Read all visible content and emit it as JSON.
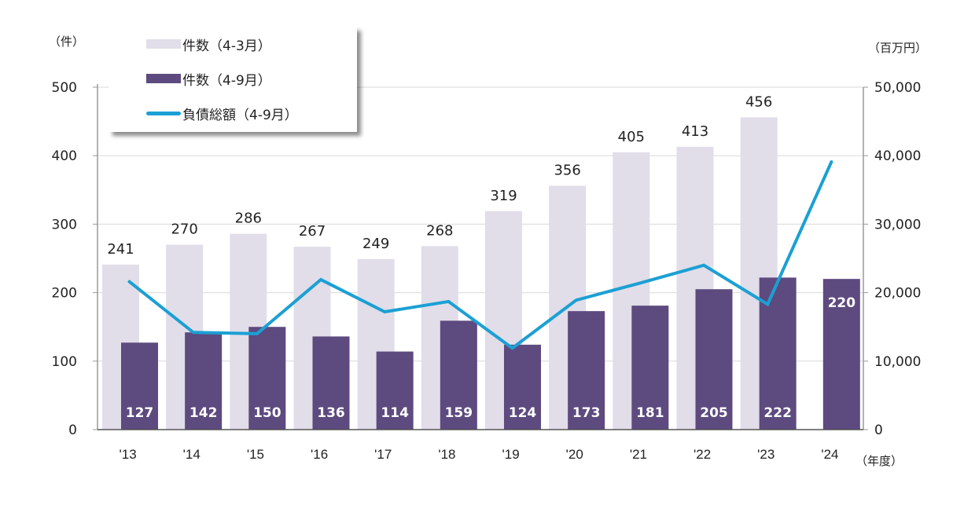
{
  "chart_data": {
    "type": "bar",
    "title": "",
    "categories": [
      "'13",
      "'14",
      "'15",
      "'16",
      "'17",
      "'18",
      "'19",
      "'20",
      "'21",
      "'22",
      "'23",
      "'24"
    ],
    "series": [
      {
        "name": "件数（4-3月）",
        "kind": "bar",
        "axis": "left",
        "color": "#e1dde9",
        "values": [
          241,
          270,
          286,
          267,
          249,
          268,
          319,
          356,
          405,
          413,
          456,
          null
        ]
      },
      {
        "name": "件数（4-9月）",
        "kind": "bar",
        "axis": "left",
        "color": "#5d4a7f",
        "values": [
          127,
          142,
          150,
          136,
          114,
          159,
          124,
          173,
          181,
          205,
          222,
          220
        ]
      },
      {
        "name": "負債総額（4-9月）",
        "kind": "line",
        "axis": "right",
        "color": "#1ba0d4",
        "values": [
          21600,
          14200,
          14000,
          21900,
          17200,
          18700,
          11900,
          18900,
          21400,
          24000,
          18300,
          39100
        ]
      }
    ],
    "left_axis": {
      "label": "（件）",
      "ylim": [
        0,
        500
      ],
      "ticks": [
        0,
        100,
        200,
        300,
        400,
        500
      ]
    },
    "right_axis": {
      "label": "（百万円）",
      "ylim": [
        0,
        50000
      ],
      "ticks": [
        "0",
        "10,000",
        "20,000",
        "30,000",
        "40,000",
        "50,000"
      ]
    },
    "xlabel": "（年度）",
    "grid": true,
    "legend_position": "top-left"
  }
}
